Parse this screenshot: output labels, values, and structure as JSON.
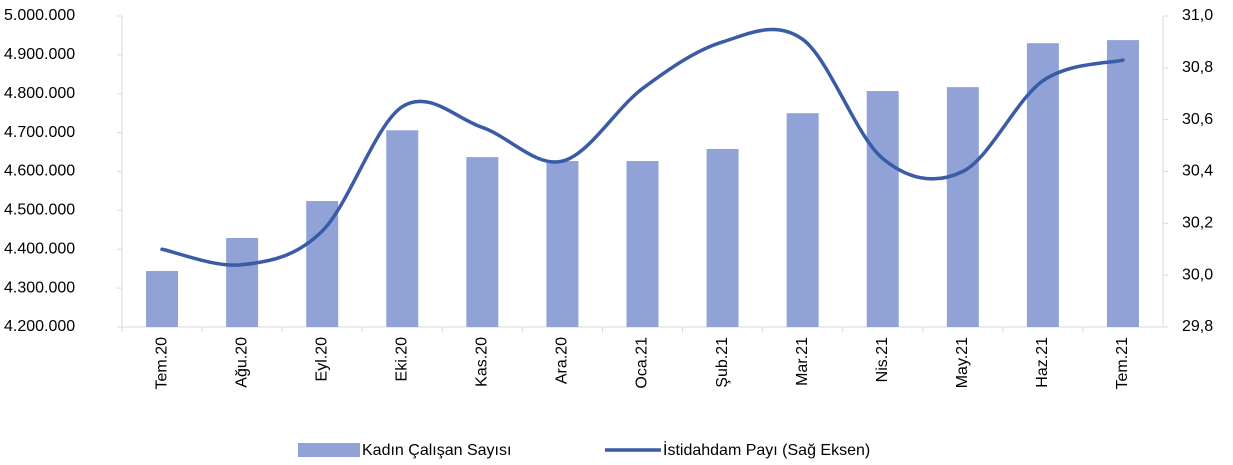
{
  "chart_data": {
    "type": "bar_line",
    "categories": [
      "Tem.20",
      "Ağu.20",
      "Eyl.20",
      "Eki.20",
      "Kas.20",
      "Ara.20",
      "Oca.21",
      "Şub.21",
      "Mar.21",
      "Nis.21",
      "May.21",
      "Haz.21",
      "Tem.21"
    ],
    "series": [
      {
        "name": "Kadın Çalışan Sayısı",
        "type": "bar",
        "color": "#91a3d6",
        "values": [
          4344000,
          4429000,
          4524000,
          4706000,
          4637000,
          4627000,
          4627000,
          4658000,
          4750000,
          4807000,
          4817000,
          4930000,
          4938000
        ]
      },
      {
        "name": "İstidahdam Payı (Sağ Eksen)",
        "type": "line",
        "axis": "y2",
        "color": "#3a5ba6",
        "values": [
          30.1,
          30.04,
          30.17,
          30.65,
          30.57,
          30.44,
          30.72,
          30.9,
          30.91,
          30.45,
          30.4,
          30.75,
          30.83
        ]
      }
    ],
    "ylim": [
      4200000,
      5000000
    ],
    "yticks": [
      {
        "value": 4200000,
        "label": "4.200.000"
      },
      {
        "value": 4300000,
        "label": "4.300.000"
      },
      {
        "value": 4400000,
        "label": "4.400.000"
      },
      {
        "value": 4500000,
        "label": "4.500.000"
      },
      {
        "value": 4600000,
        "label": "4.600.000"
      },
      {
        "value": 4700000,
        "label": "4.700.000"
      },
      {
        "value": 4800000,
        "label": "4.800.000"
      },
      {
        "value": 4900000,
        "label": "4.900.000"
      },
      {
        "value": 5000000,
        "label": "5.000.000"
      }
    ],
    "y2lim": [
      29.8,
      31.0
    ],
    "y2ticks": [
      {
        "value": 29.8,
        "label": "29,8"
      },
      {
        "value": 30.0,
        "label": "30,0"
      },
      {
        "value": 30.2,
        "label": "30,2"
      },
      {
        "value": 30.4,
        "label": "30,4"
      },
      {
        "value": 30.6,
        "label": "30,6"
      },
      {
        "value": 30.8,
        "label": "30,8"
      },
      {
        "value": 31.0,
        "label": "31,0"
      }
    ],
    "legend": "bottom",
    "grid": false
  }
}
